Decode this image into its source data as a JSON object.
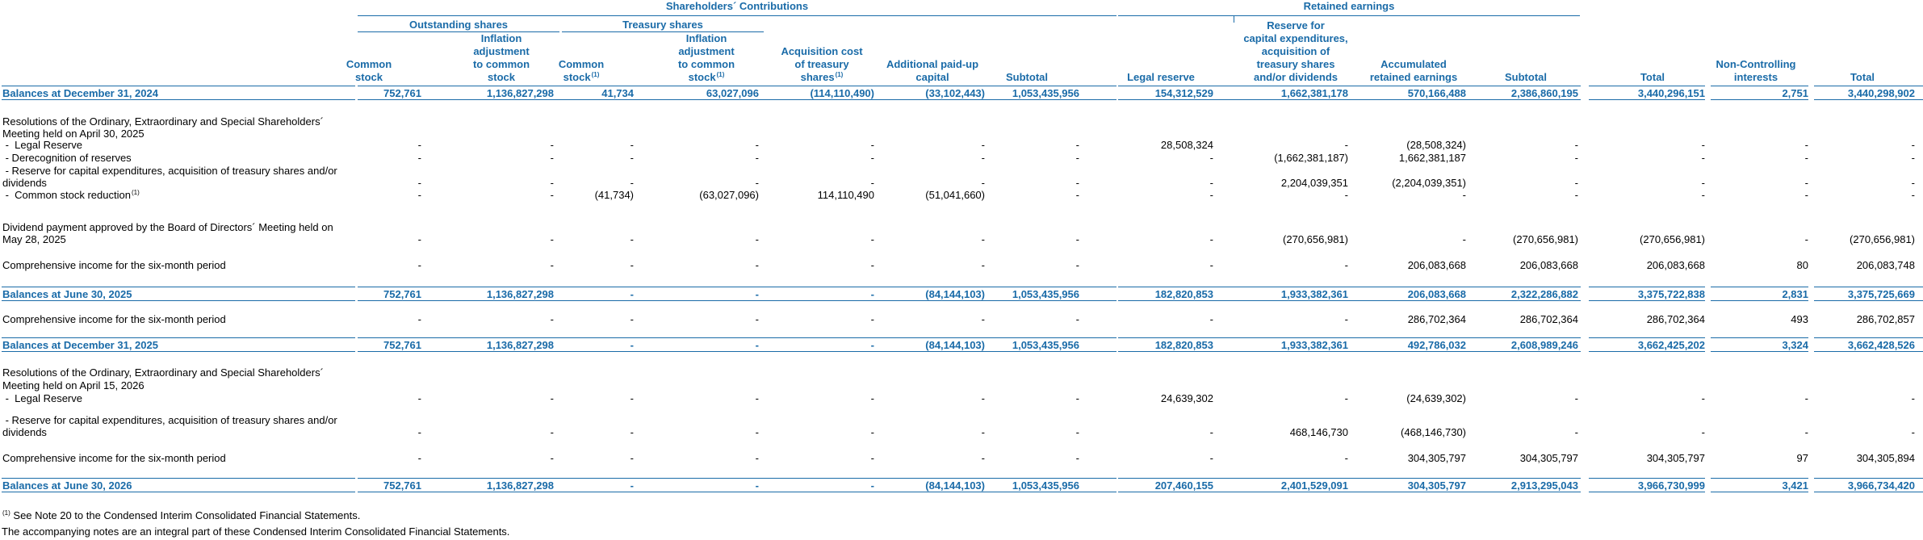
{
  "groups": {
    "shareholders_contributions": "Shareholders´ Contributions",
    "retained_earnings": "Retained earnings",
    "outstanding_shares": "Outstanding shares",
    "treasury_shares": "Treasury shares"
  },
  "columns": [
    {
      "key": "common_stock",
      "lines": [
        "Common",
        "stock"
      ],
      "sup": ""
    },
    {
      "key": "inflation_adj",
      "lines": [
        "Inflation",
        "adjustment",
        "to common",
        "stock"
      ],
      "sup": ""
    },
    {
      "key": "ts_common_stock",
      "lines": [
        "Common",
        "stock"
      ],
      "sup": "(1)"
    },
    {
      "key": "ts_inflation_adj",
      "lines": [
        "Inflation",
        "adjustment",
        "to common",
        "stock"
      ],
      "sup": "(1)"
    },
    {
      "key": "acq_cost",
      "lines": [
        "Acquisition cost",
        "of treasury",
        "shares"
      ],
      "sup": "(1)"
    },
    {
      "key": "apic",
      "lines": [
        "Additional paid-up",
        "capital"
      ],
      "sup": ""
    },
    {
      "key": "subtotal1",
      "lines": [
        "Subtotal"
      ],
      "sup": ""
    },
    {
      "key": "legal_reserve",
      "lines": [
        "Legal reserve"
      ],
      "sup": ""
    },
    {
      "key": "reserve_capex",
      "lines": [
        "Reserve for",
        "capital expenditures,",
        "acquisition of",
        "treasury shares",
        "and/or dividends"
      ],
      "sup": ""
    },
    {
      "key": "accum_re",
      "lines": [
        "Accumulated",
        "retained earnings"
      ],
      "sup": ""
    },
    {
      "key": "subtotal2",
      "lines": [
        "Subtotal"
      ],
      "sup": ""
    },
    {
      "key": "total1",
      "lines": [
        "Total"
      ],
      "sup": ""
    },
    {
      "key": "nci",
      "lines": [
        "Non-Controlling",
        "interests"
      ],
      "sup": ""
    },
    {
      "key": "total2",
      "lines": [
        "Total"
      ],
      "sup": ""
    }
  ],
  "rows": [
    {
      "type": "balance",
      "label": "Balances at December 31, 2024",
      "values": [
        "752,761",
        "1,136,827,298",
        "41,734",
        "63,027,096",
        "(114,110,490)",
        "(33,102,443)",
        "1,053,435,956",
        "154,312,529",
        "1,662,381,178",
        "570,166,488",
        "2,386,860,195",
        "3,440,296,151",
        "2,751",
        "3,440,298,902"
      ]
    },
    {
      "type": "text",
      "label": "Resolutions of the Ordinary, Extraordinary and Special Shareholders´"
    },
    {
      "type": "text",
      "label": "Meeting held on April 30, 2025"
    },
    {
      "type": "item",
      "label": " -  Legal Reserve",
      "values": [
        "-",
        "-",
        "-",
        "-",
        "-",
        "-",
        "-",
        "28,508,324",
        "-",
        "(28,508,324)",
        "-",
        "-",
        "-",
        "-"
      ]
    },
    {
      "type": "item",
      "label": " - Derecognition of reserves",
      "values": [
        "-",
        "-",
        "-",
        "-",
        "-",
        "-",
        "-",
        "-",
        "(1,662,381,187)",
        "1,662,381,187",
        "-",
        "-",
        "-",
        "-"
      ]
    },
    {
      "type": "text",
      "label": " - Reserve for capital expenditures, acquisition of treasury shares and/or"
    },
    {
      "type": "item",
      "label": "dividends",
      "values": [
        "-",
        "-",
        "-",
        "-",
        "-",
        "-",
        "-",
        "-",
        "2,204,039,351",
        "(2,204,039,351)",
        "-",
        "-",
        "-",
        "-"
      ]
    },
    {
      "type": "item",
      "label": " -  Common stock reduction",
      "sup": "(1)",
      "values": [
        "-",
        "-",
        "(41,734)",
        "(63,027,096)",
        "114,110,490",
        "(51,041,660)",
        "-",
        "-",
        "-",
        "-",
        "-",
        "-",
        "-",
        "-"
      ]
    },
    {
      "type": "text",
      "label": "Dividend payment approved by the Board of Directors´ Meeting held on"
    },
    {
      "type": "item",
      "label": "May 28, 2025",
      "values": [
        "-",
        "-",
        "-",
        "-",
        "-",
        "-",
        "-",
        "-",
        "(270,656,981)",
        "-",
        "(270,656,981)",
        "(270,656,981)",
        "-",
        "(270,656,981)"
      ]
    },
    {
      "type": "item",
      "label": "Comprehensive income for the six-month period",
      "values": [
        "-",
        "-",
        "-",
        "-",
        "-",
        "-",
        "-",
        "-",
        "-",
        "206,083,668",
        "206,083,668",
        "206,083,668",
        "80",
        "206,083,748"
      ]
    },
    {
      "type": "balance",
      "label": "Balances at June 30, 2025",
      "values": [
        "752,761",
        "1,136,827,298",
        "-",
        "-",
        "-",
        "(84,144,103)",
        "1,053,435,956",
        "182,820,853",
        "1,933,382,361",
        "206,083,668",
        "2,322,286,882",
        "3,375,722,838",
        "2,831",
        "3,375,725,669"
      ]
    },
    {
      "type": "item",
      "label": "Comprehensive income for the six-month period",
      "values": [
        "-",
        "-",
        "-",
        "-",
        "-",
        "-",
        "-",
        "-",
        "-",
        "286,702,364",
        "286,702,364",
        "286,702,364",
        "493",
        "286,702,857"
      ]
    },
    {
      "type": "balance",
      "label": "Balances at December 31, 2025",
      "values": [
        "752,761",
        "1,136,827,298",
        "-",
        "-",
        "-",
        "(84,144,103)",
        "1,053,435,956",
        "182,820,853",
        "1,933,382,361",
        "492,786,032",
        "2,608,989,246",
        "3,662,425,202",
        "3,324",
        "3,662,428,526"
      ]
    },
    {
      "type": "text",
      "label": "Resolutions of the Ordinary, Extraordinary and Special Shareholders´"
    },
    {
      "type": "text",
      "label": "Meeting held on April 15, 2026"
    },
    {
      "type": "item",
      "label": " -  Legal Reserve",
      "values": [
        "-",
        "-",
        "-",
        "-",
        "-",
        "-",
        "-",
        "24,639,302",
        "-",
        "(24,639,302)",
        "-",
        "-",
        "-",
        "-"
      ]
    },
    {
      "type": "text",
      "label": " - Reserve for capital expenditures, acquisition of treasury shares and/or"
    },
    {
      "type": "item",
      "label": "dividends",
      "values": [
        "-",
        "-",
        "-",
        "-",
        "-",
        "-",
        "-",
        "-",
        "468,146,730",
        "(468,146,730)",
        "-",
        "-",
        "-",
        "-"
      ]
    },
    {
      "type": "item",
      "label": "Comprehensive income for the six-month period",
      "values": [
        "-",
        "-",
        "-",
        "-",
        "-",
        "-",
        "-",
        "-",
        "-",
        "304,305,797",
        "304,305,797",
        "304,305,797",
        "97",
        "304,305,894"
      ]
    },
    {
      "type": "balance",
      "label": "Balances at June 30, 2026",
      "values": [
        "752,761",
        "1,136,827,298",
        "-",
        "-",
        "-",
        "(84,144,103)",
        "1,053,435,956",
        "207,460,155",
        "2,401,529,091",
        "304,305,797",
        "2,913,295,043",
        "3,966,730,999",
        "3,421",
        "3,966,734,420"
      ]
    }
  ],
  "footnotes": {
    "note1_sup": "(1)",
    "note1": " See Note 20 to the Condensed Interim Consolidated Financial Statements.",
    "note2": "The accompanying notes are an integral part of these Condensed Interim Consolidated Financial Statements."
  }
}
